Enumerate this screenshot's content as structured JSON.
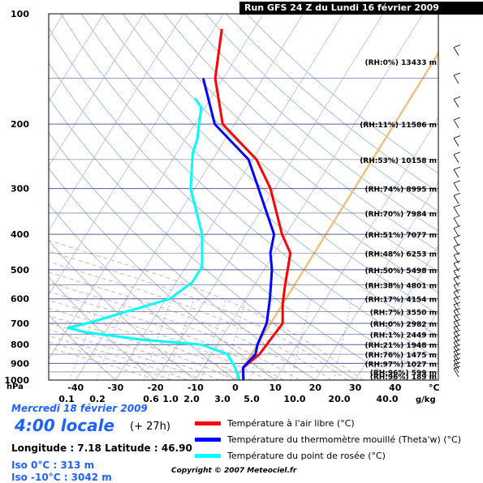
{
  "header": {
    "run_title": "Run GFS 24 Z du Lundi 16 février 2009"
  },
  "info": {
    "date": "Mercredi 18 février 2009",
    "local_time": "4:00 locale",
    "offset": "(+ 27h)",
    "coords": "Longitude : 7.18  Latitude : 46.90",
    "iso0": "Iso 0°C : 313 m",
    "iso10": "Iso -10°C : 3042 m",
    "copyright": "Copyright © 2007 Meteociel.fr"
  },
  "colors": {
    "temperature": "#ff0000",
    "wetbulb": "#0000ff",
    "dewpoint": "#00ffff",
    "isobar": "#5a5a9a",
    "isotherm": "#b8b8d8",
    "dry_adiabat": "#8fb8b0",
    "moist_adiabat": "#c8a0a0",
    "mixing_ratio": "#9a9ac8",
    "freezing": "#f0c080",
    "header_bg": "#000000",
    "info_blue": "#1e63ff"
  },
  "chart_data": {
    "type": "line",
    "title": "Run GFS 24 Z du Lundi 16 février 2009",
    "xlabel": "°C",
    "ylabel": "hPa",
    "skew": true,
    "xlim": [
      -50,
      40
    ],
    "ylim": [
      1000,
      100
    ],
    "y_ticks": [
      100,
      200,
      300,
      400,
      500,
      600,
      700,
      800,
      900,
      1000
    ],
    "x_ticks": [
      -40,
      -30,
      -20,
      -10,
      0,
      10,
      20,
      30,
      40
    ],
    "x_unit_label": "°C",
    "mixing_ratio_ticks": [
      "0.1",
      "0.2",
      "0.6",
      "1.0",
      "2.0",
      "3.0",
      "5.0",
      "10.0",
      "20.0",
      "40.0"
    ],
    "mixing_ratio_unit": "g/kg",
    "grid": true,
    "legend_position": "bottom",
    "series": [
      {
        "name": "Température à l'air libre (°C)",
        "color": "#ff0000",
        "pressure": [
          1000,
          925,
          850,
          700,
          620,
          560,
          450,
          400,
          300,
          250,
          200,
          150,
          110
        ],
        "values": [
          2,
          0,
          2,
          3,
          0,
          -2,
          -6,
          -11,
          -21,
          -29,
          -43,
          -52,
          -58
        ]
      },
      {
        "name": "Température du thermomètre mouillé (Theta'w) (°C)",
        "color": "#0000ff",
        "pressure": [
          1000,
          925,
          850,
          800,
          700,
          600,
          500,
          450,
          400,
          300,
          250,
          200,
          150
        ],
        "values": [
          2,
          0,
          1,
          0,
          -1,
          -4,
          -8,
          -11,
          -13,
          -24,
          -31,
          -45,
          -55
        ]
      },
      {
        "name": "Température du point de rosée (°C)",
        "color": "#00ffff",
        "pressure": [
          1000,
          925,
          850,
          800,
          775,
          740,
          720,
          700,
          600,
          540,
          490,
          400,
          300,
          240,
          220,
          180,
          170
        ],
        "values": [
          1,
          -2,
          -6,
          -14,
          -30,
          -45,
          -50,
          -46,
          -29,
          -26,
          -26,
          -31,
          -41,
          -46,
          -47,
          -51,
          -54
        ]
      }
    ],
    "right_labels": [
      {
        "pressure": 135,
        "text": "(RH:0%) 13433 m"
      },
      {
        "pressure": 200,
        "text": "(RH:11%) 11586 m"
      },
      {
        "pressure": 250,
        "text": "(RH:53%) 10158 m"
      },
      {
        "pressure": 300,
        "text": "(RH:74%) 8995 m"
      },
      {
        "pressure": 350,
        "text": "(RH:70%) 7984 m"
      },
      {
        "pressure": 400,
        "text": "(RH:51%) 7077 m"
      },
      {
        "pressure": 450,
        "text": "(RH:48%) 6253 m"
      },
      {
        "pressure": 500,
        "text": "(RH:50%) 5498 m"
      },
      {
        "pressure": 550,
        "text": "(RH:38%) 4801 m"
      },
      {
        "pressure": 600,
        "text": "(RH:17%) 4154 m"
      },
      {
        "pressure": 650,
        "text": "(RH:7%) 3550 m"
      },
      {
        "pressure": 700,
        "text": "(RH:0%) 2982 m"
      },
      {
        "pressure": 750,
        "text": "(RH:1%) 2449 m"
      },
      {
        "pressure": 800,
        "text": "(RH:21%) 1948 m"
      },
      {
        "pressure": 850,
        "text": "(RH:76%) 1475 m"
      },
      {
        "pressure": 900,
        "text": "(RH:97%) 1027 m"
      },
      {
        "pressure": 950,
        "text": "(RH:96%) 599 m"
      },
      {
        "pressure": 1000,
        "text": "(RH:96%) 189 m"
      }
    ]
  }
}
